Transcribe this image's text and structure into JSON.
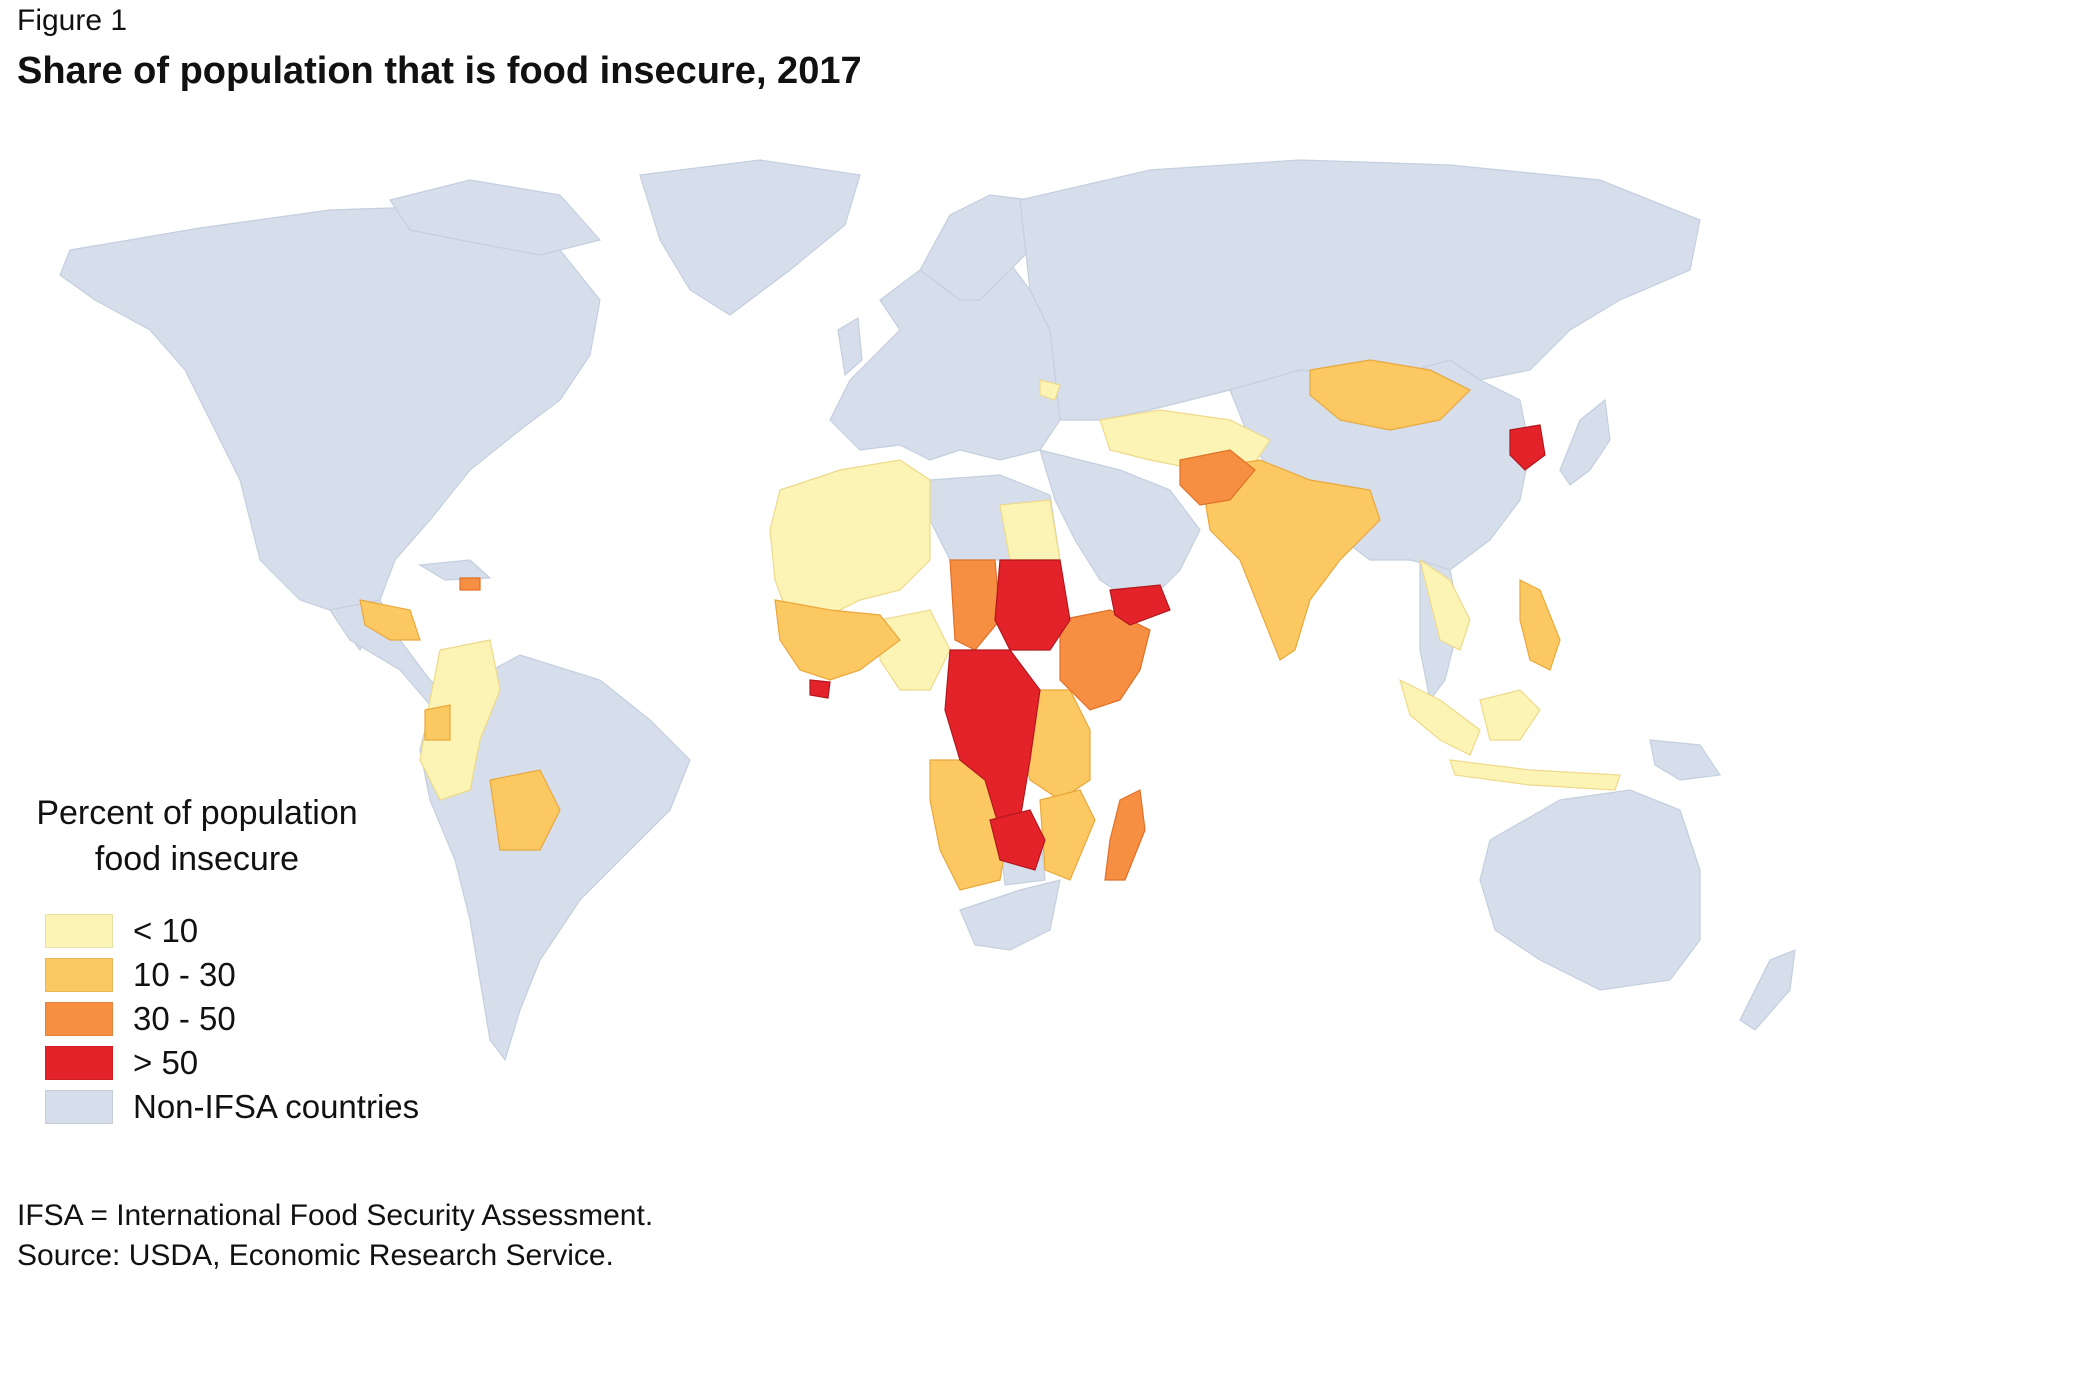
{
  "figure_label": "Figure 1",
  "title": "Share of population that is food insecure, 2017",
  "legend": {
    "title_line1": "Percent of population",
    "title_line2": "food insecure",
    "items": [
      {
        "label": "< 10",
        "color": "#fbf4b4"
      },
      {
        "label": "10 - 30",
        "color": "#fbc862"
      },
      {
        "label": "30 - 50",
        "color": "#f68f42"
      },
      {
        "label": "> 50",
        "color": "#e4222a"
      },
      {
        "label": "Non-IFSA countries",
        "color": "#d5deea"
      }
    ]
  },
  "notes": {
    "line1": "IFSA = International Food Security Assessment.",
    "line2": "Source: USDA, Economic Research Service."
  }
}
